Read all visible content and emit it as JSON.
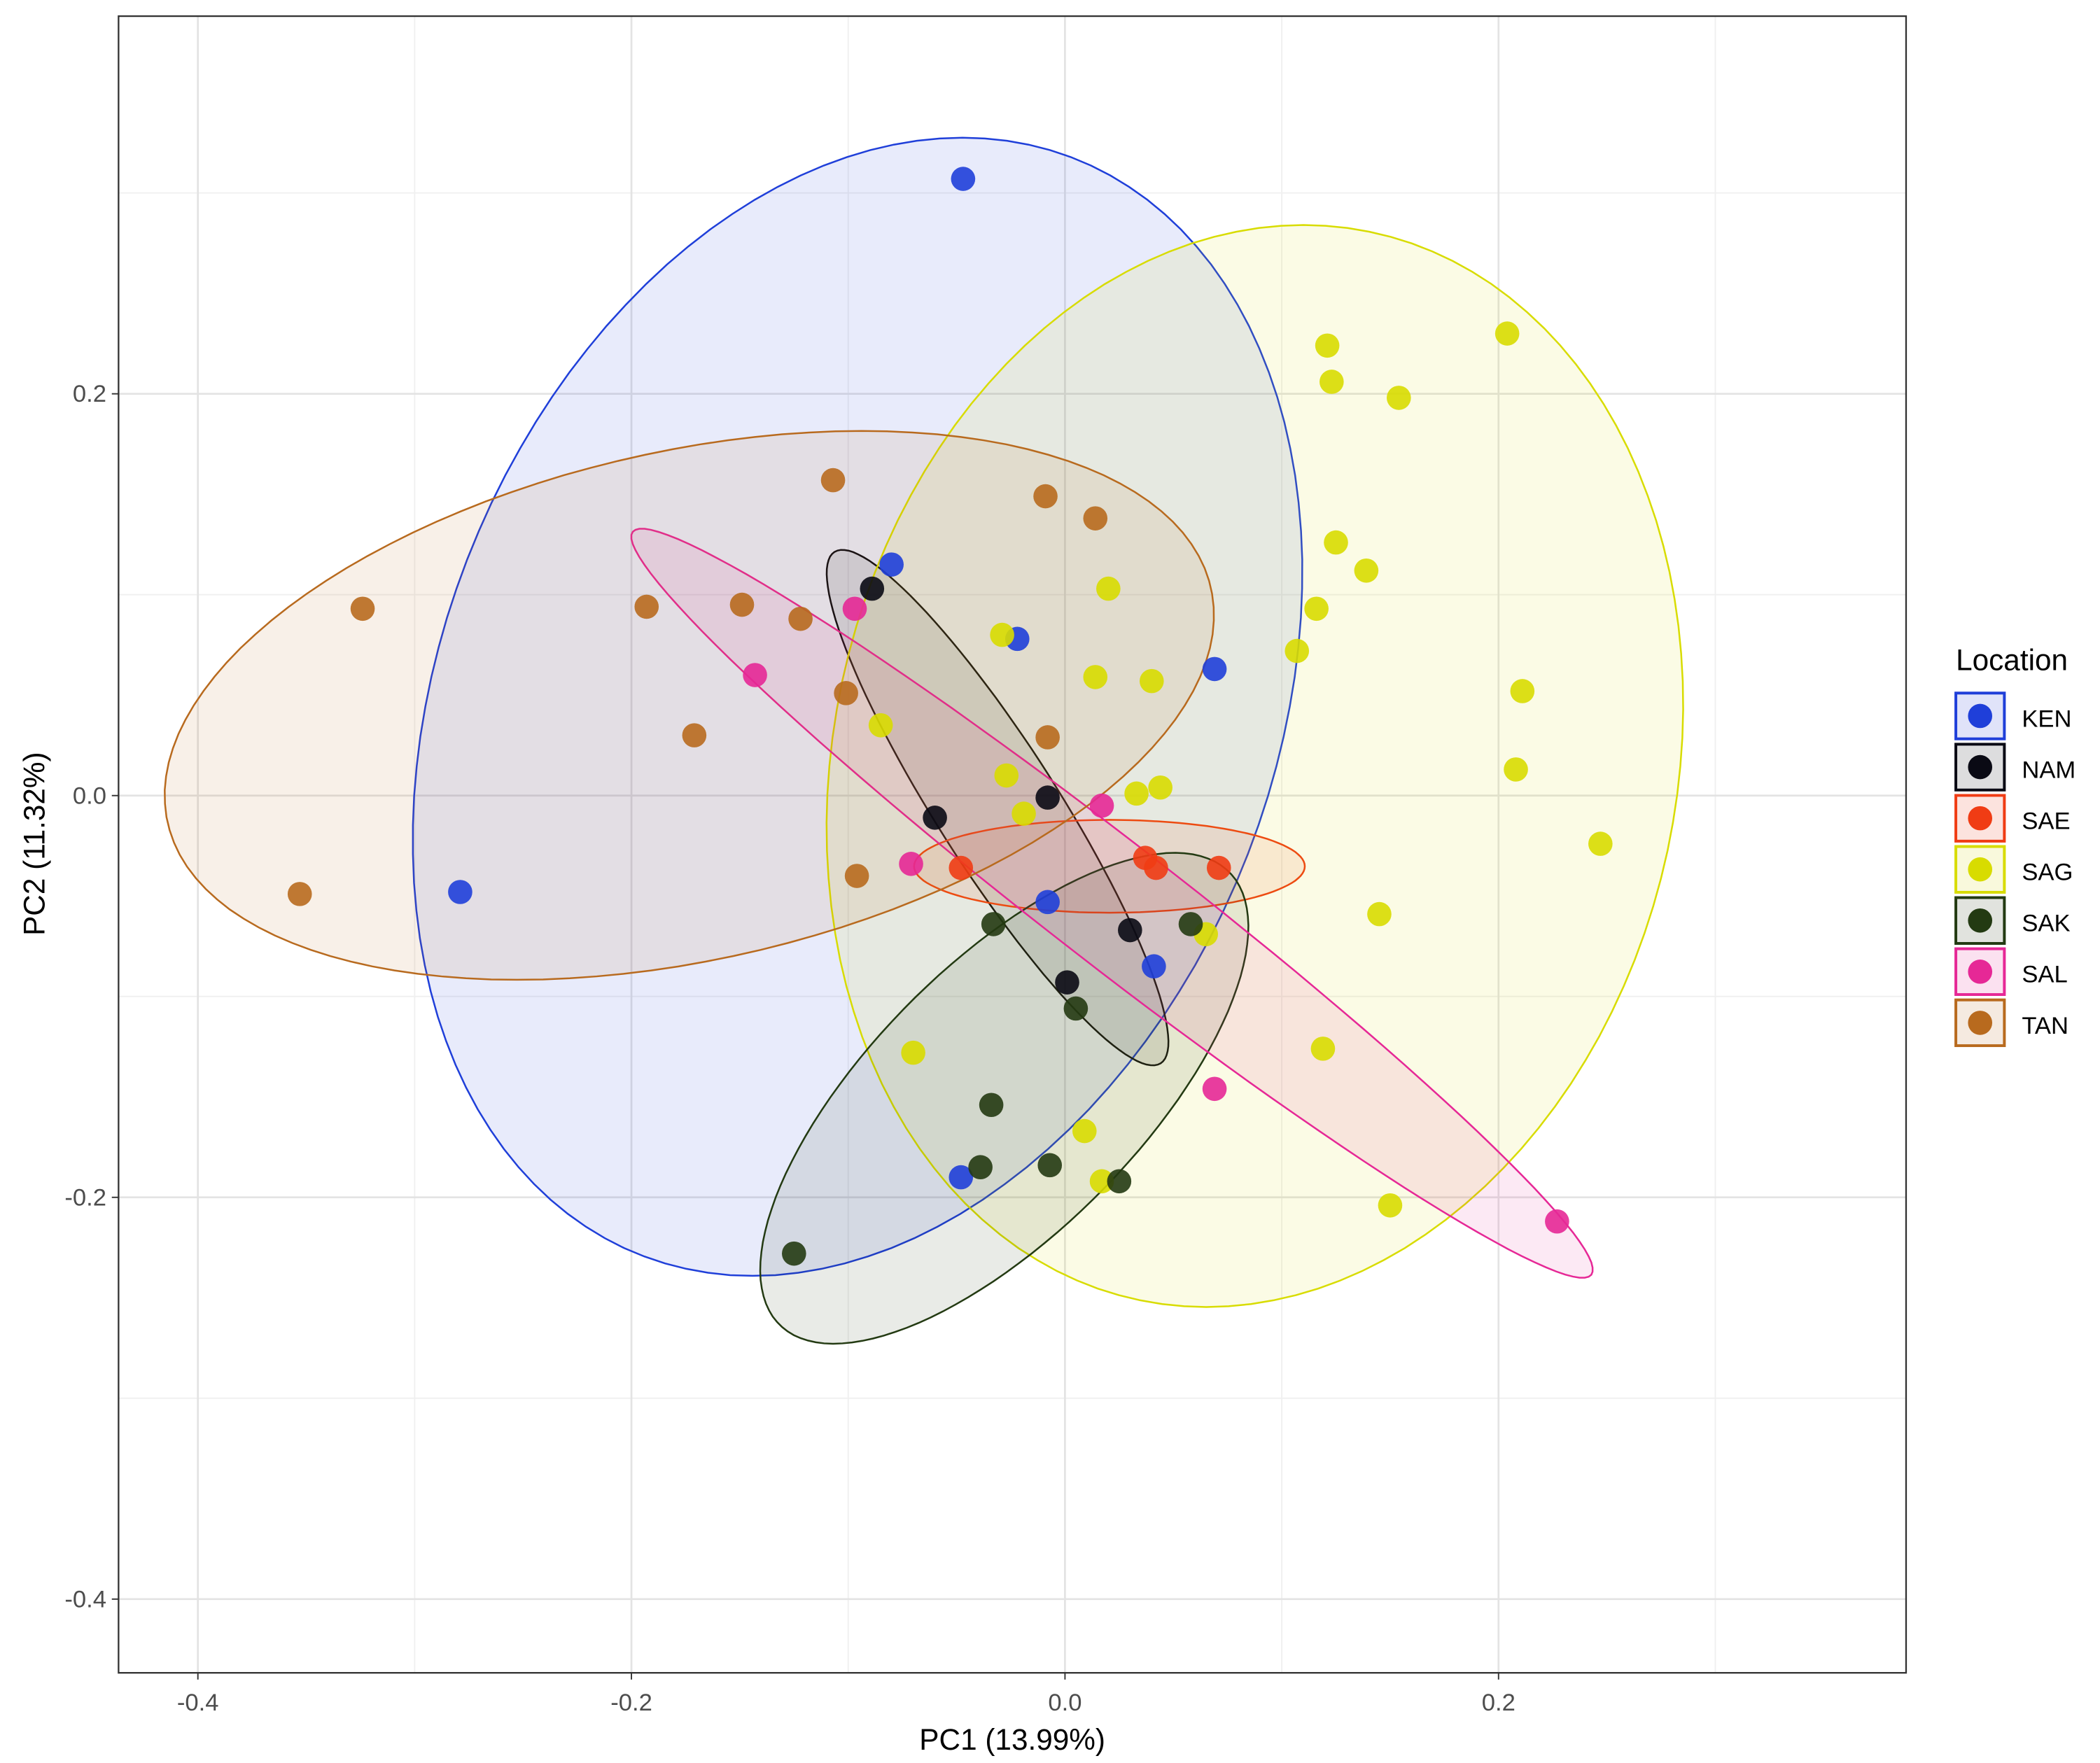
{
  "chart_data": {
    "type": "scatter",
    "title": "",
    "xlabel": "PC1 (13.99%)",
    "ylabel": "PC2 (11.32%)",
    "xlim": [
      -0.4366,
      0.388
    ],
    "ylim": [
      -0.4367,
      0.388
    ],
    "xticks": [
      -0.4,
      -0.2,
      0.0,
      0.2
    ],
    "yticks": [
      -0.4,
      -0.2,
      0.0,
      0.2
    ],
    "xtick_labels": [
      "-0.4",
      "-0.2",
      "0.0",
      "0.2"
    ],
    "ytick_labels": [
      "-0.4",
      "-0.2",
      "0.0",
      "0.2"
    ],
    "minor_grid": [
      -0.3,
      -0.1,
      0.1,
      0.3
    ],
    "grid": true,
    "legend": {
      "title": "Location",
      "placement": "right"
    },
    "series": [
      {
        "name": "KEN",
        "color": "#1f3fd9",
        "x": [
          -0.047,
          -0.08,
          -0.022,
          0.069,
          -0.279,
          -0.008,
          0.041,
          -0.048
        ],
        "y": [
          0.307,
          0.115,
          0.078,
          0.063,
          -0.048,
          -0.053,
          -0.085,
          -0.19
        ],
        "ellipse": {
          "center": [
            -0.0957,
            0.0442
          ],
          "u": [
            0.0484,
            0.2833
          ],
          "v": [
            0.1994,
            0
          ]
        }
      },
      {
        "name": "NAM",
        "color": "#0a0a14",
        "x": [
          -0.089,
          -0.008,
          -0.06,
          0.03,
          0.001
        ],
        "y": [
          0.103,
          -0.001,
          -0.011,
          -0.067,
          -0.093
        ],
        "ellipse": {
          "center": [
            -0.0311,
            -0.006
          ],
          "u": [
            -0.0752,
            0.1273
          ],
          "v": [
            0.0236,
            0.0161
          ]
        }
      },
      {
        "name": "SAE",
        "color": "#f03c14",
        "x": [
          -0.048,
          0.037,
          0.042,
          0.071
        ],
        "y": [
          -0.036,
          -0.031,
          -0.036,
          -0.036
        ],
        "ellipse": {
          "center": [
            0.0205,
            -0.0352
          ],
          "u": [
            0.0901,
            0
          ],
          "v": [
            0,
            0.0231
          ]
        }
      },
      {
        "name": "SAG",
        "color": "#d8dc00",
        "x": [
          0.121,
          0.123,
          0.204,
          0.154,
          0.125,
          0.139,
          0.116,
          0.107,
          0.211,
          0.208,
          0.247,
          0.145,
          0.119,
          0.15,
          0.02,
          -0.029,
          0.014,
          0.04,
          -0.085,
          -0.027,
          -0.019,
          0.033,
          0.044,
          0.065,
          -0.07,
          0.009,
          0.017
        ],
        "y": [
          0.224,
          0.206,
          0.23,
          0.198,
          0.126,
          0.112,
          0.093,
          0.072,
          0.052,
          0.013,
          -0.024,
          -0.059,
          -0.126,
          -0.204,
          0.103,
          0.08,
          0.059,
          0.057,
          0.035,
          0.01,
          -0.009,
          0.001,
          0.004,
          -0.069,
          -0.128,
          -0.167,
          -0.192
        ],
        "ellipse": {
          "center": [
            0.0876,
            0.0147
          ],
          "u": [
            0.0224,
            0.2693
          ],
          "v": [
            0.1963,
            0
          ]
        }
      },
      {
        "name": "SAK",
        "color": "#233a12",
        "x": [
          -0.033,
          0.058,
          0.005,
          -0.034,
          -0.039,
          -0.007,
          0.025,
          -0.125
        ],
        "y": [
          -0.064,
          -0.064,
          -0.106,
          -0.154,
          -0.185,
          -0.184,
          -0.192,
          -0.228
        ],
        "ellipse": {
          "center": [
            -0.028,
            -0.1507
          ],
          "u": [
            0.1025,
            0.1139
          ],
          "v": [
            0.0466,
            -0.0442
          ]
        }
      },
      {
        "name": "SAL",
        "color": "#e62896",
        "x": [
          -0.097,
          -0.143,
          0.017,
          -0.071,
          0.069,
          0.227
        ],
        "y": [
          0.093,
          0.06,
          -0.005,
          -0.034,
          -0.146,
          -0.212
        ],
        "ellipse": {
          "center": [
            0.0217,
            -0.0536
          ],
          "u": [
            -0.2211,
            0.1849
          ],
          "v": [
            0.0174,
            0.0241
          ]
        }
      },
      {
        "name": "TAN",
        "color": "#b86a1e",
        "x": [
          -0.107,
          -0.009,
          0.014,
          -0.324,
          -0.193,
          -0.149,
          -0.122,
          -0.101,
          -0.171,
          -0.008,
          -0.096,
          -0.353
        ],
        "y": [
          0.157,
          0.149,
          0.138,
          0.093,
          0.094,
          0.095,
          0.088,
          0.051,
          0.03,
          0.029,
          -0.04,
          -0.049
        ],
        "ellipse": {
          "center": [
            -0.1733,
            0.0449
          ],
          "u": [
            0.0795,
            0.1366
          ],
          "v": [
            0.2286,
            0
          ]
        }
      }
    ]
  }
}
